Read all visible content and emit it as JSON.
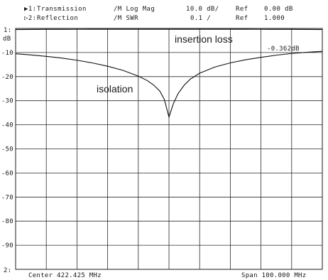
{
  "header": {
    "ch1": {
      "marker": "▶1:",
      "name": "Transmission",
      "format": "/M Log Mag",
      "scale": "10.0 dB/",
      "ref_label": "Ref",
      "ref_value": "0.00 dB"
    },
    "ch2": {
      "marker": "▷2:",
      "name": "Reflection",
      "format": "/M SWR",
      "scale": "0.1 /",
      "ref_label": "Ref",
      "ref_value": "1.000"
    }
  },
  "axis": {
    "unit": "dB",
    "ref_marker": "1:",
    "ch2_marker": "2:"
  },
  "footer": {
    "center": "Center 422.425 MHz",
    "span": "Span 100.000 MHz"
  },
  "annotations": {
    "insertion_loss": "insertion loss",
    "isolation": "isolation",
    "marker_readout": "-0.362dB"
  },
  "chart_data": {
    "type": "line",
    "x_unit": "MHz",
    "x_center": 422.425,
    "x_span": 100.0,
    "xlim": [
      372.425,
      472.425
    ],
    "ylim": [
      -100,
      0
    ],
    "yticks": [
      -10,
      -20,
      -30,
      -40,
      -50,
      -60,
      -70,
      -80,
      -90
    ],
    "ytick_labels": [
      "-10",
      "-20",
      "-30",
      "-40",
      "-50",
      "-60",
      "-70",
      "-80",
      "-90"
    ],
    "grid": true,
    "series": [
      {
        "x": [
          372.425,
          377.425,
          382.425,
          387.425,
          392.425,
          397.425,
          402.425,
          407.425,
          412.425,
          417.425,
          422.425,
          427.425,
          432.425,
          437.425,
          442.425,
          447.425,
          452.425,
          457.425,
          462.425,
          467.425,
          472.425
        ],
        "y": [
          -0.45,
          -0.42,
          -0.4,
          -0.38,
          -0.37,
          -0.36,
          -0.35,
          -0.35,
          -0.34,
          -0.34,
          -0.34,
          -0.34,
          -0.34,
          -0.35,
          -0.35,
          -0.36,
          -0.37,
          -0.38,
          -0.4,
          -0.42,
          -0.45
        ]
      },
      {
        "x": [
          372.425,
          377.425,
          382.425,
          387.425,
          392.425,
          397.425,
          402.425,
          407.425,
          412.425,
          415.425,
          417.425,
          419.425,
          420.925,
          422.425,
          423.925,
          425.425,
          427.425,
          429.425,
          432.425,
          437.425,
          442.425,
          447.425,
          452.425,
          457.425,
          462.425,
          467.425,
          472.425
        ],
        "y": [
          -10.5,
          -11.0,
          -11.6,
          -12.3,
          -13.2,
          -14.3,
          -15.7,
          -17.4,
          -19.8,
          -21.7,
          -23.5,
          -26.0,
          -29.5,
          -36.8,
          -31.0,
          -27.0,
          -23.5,
          -21.0,
          -18.6,
          -16.0,
          -14.3,
          -13.0,
          -12.0,
          -11.1,
          -10.4,
          -9.9,
          -9.5
        ]
      }
    ]
  }
}
